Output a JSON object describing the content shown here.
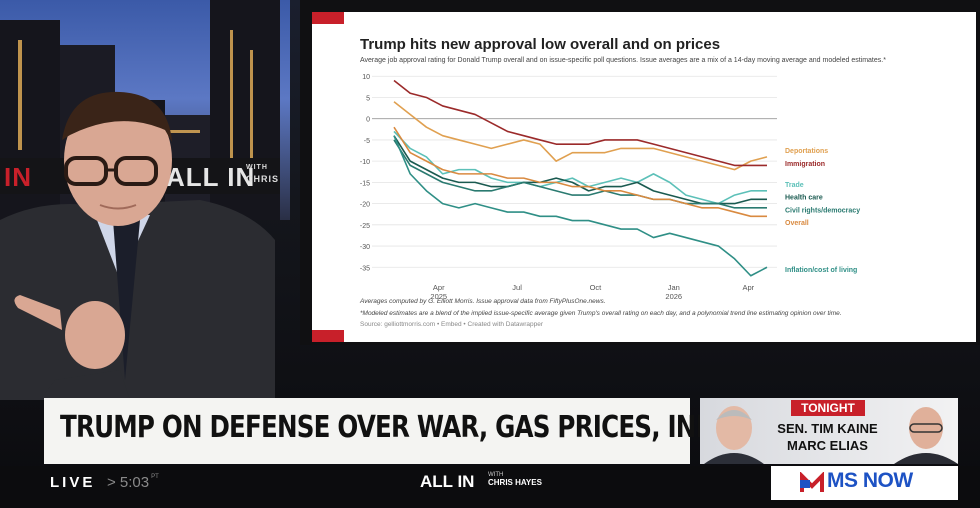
{
  "background_sign": {
    "left": "IN",
    "middle": "ALL IN",
    "with_label": "WITH",
    "chris_label": "CHRIS"
  },
  "chart_data": {
    "type": "line",
    "title": "Trump hits new approval low overall and on prices",
    "subtitle": "Average job approval rating for Donald Trump overall and on issue-specific poll questions. Issue averages are a mix of a 14-day moving average and modeled estimates.*",
    "y_ticks": [
      "10",
      "5",
      "0",
      "-5",
      "-10",
      "-15",
      "-20",
      "-25",
      "-30",
      "-35"
    ],
    "ylim": [
      -38,
      11
    ],
    "x_ticks": [
      {
        "label": "Apr",
        "sub": "2025",
        "t": 0.12
      },
      {
        "label": "Jul",
        "sub": "",
        "t": 0.33
      },
      {
        "label": "Oct",
        "sub": "",
        "t": 0.54
      },
      {
        "label": "Jan",
        "sub": "2026",
        "t": 0.75
      },
      {
        "label": "Apr",
        "sub": "",
        "t": 0.95
      }
    ],
    "series": [
      {
        "name": "Deportations",
        "color": "#e0a050",
        "values": [
          4,
          1,
          -2,
          -4,
          -5,
          -6,
          -7,
          -6,
          -5,
          -6,
          -10,
          -8,
          -8,
          -8,
          -7,
          -7,
          -7,
          -8,
          -9,
          -10,
          -11,
          -12,
          -10,
          -9
        ]
      },
      {
        "name": "Immigration",
        "color": "#9b2a2a",
        "values": [
          9,
          6,
          5,
          3,
          2,
          1,
          -1,
          -3,
          -4,
          -5,
          -6,
          -6,
          -6,
          -5,
          -5,
          -5,
          -6,
          -7,
          -8,
          -9,
          -10,
          -11,
          -11,
          -11
        ]
      },
      {
        "name": "Trade",
        "color": "#5cc0b8",
        "values": [
          -3,
          -7,
          -9,
          -13,
          -12,
          -12,
          -14,
          -15,
          -15,
          -16,
          -15,
          -14,
          -16,
          -15,
          -14,
          -15,
          -13,
          -15,
          -18,
          -19,
          -20,
          -18,
          -17,
          -17
        ]
      },
      {
        "name": "Health care",
        "color": "#1a5a50",
        "values": [
          -4,
          -10,
          -12,
          -14,
          -15,
          -15,
          -16,
          -16,
          -15,
          -15,
          -14,
          -15,
          -17,
          -16,
          -16,
          -15,
          -17,
          -18,
          -19,
          -20,
          -20,
          -20,
          -19,
          -19
        ]
      },
      {
        "name": "Civil rights/democracy",
        "color": "#2a7a70",
        "values": [
          -5,
          -11,
          -13,
          -15,
          -16,
          -17,
          -17,
          -16,
          -15,
          -16,
          -17,
          -18,
          -18,
          -17,
          -18,
          -18,
          -19,
          -19,
          -20,
          -20,
          -20,
          -21,
          -21,
          -21
        ]
      },
      {
        "name": "Overall",
        "color": "#d98a40",
        "values": [
          -2,
          -8,
          -10,
          -12,
          -13,
          -13,
          -13,
          -14,
          -14,
          -15,
          -15,
          -16,
          -16,
          -17,
          -17,
          -18,
          -19,
          -19,
          -20,
          -21,
          -21,
          -22,
          -23,
          -23
        ]
      },
      {
        "name": "Inflation/cost of living",
        "color": "#2f8f86",
        "values": [
          -4,
          -13,
          -17,
          -20,
          -21,
          -20,
          -21,
          -22,
          -22,
          -23,
          -23,
          -24,
          -24,
          -25,
          -26,
          -26,
          -28,
          -27,
          -28,
          -29,
          -30,
          -33,
          -37,
          -35
        ]
      }
    ],
    "footnotes": [
      "Averages computed by G. Elliott Morris. Issue approval data from FiftyPlusOne.news.",
      "*Modeled estimates are a blend of the implied issue-specific average given Trump's overall rating on each day, and a polynomial trend line estimating opinion over time.",
      "Source: gelliottmorris.com • Embed • Created with Datawrapper"
    ]
  },
  "lower_third": {
    "headline": "TRUMP ON DEFENSE OVER WAR, GAS PRICES, INFLATION"
  },
  "promo": {
    "tonight": "TONIGHT",
    "guest1": "SEN. TIM KAINE",
    "guest2": "MARC ELIAS"
  },
  "ticker": {
    "live": "LIVE",
    "time": "> 5:03",
    "time_suffix": "PT",
    "show": "ALL IN",
    "show_with": "WITH",
    "show_host": "CHRIS HAYES",
    "network": "MS NOW"
  },
  "colors": {
    "accent_red": "#c8202a",
    "network_blue": "#1d52c4"
  }
}
